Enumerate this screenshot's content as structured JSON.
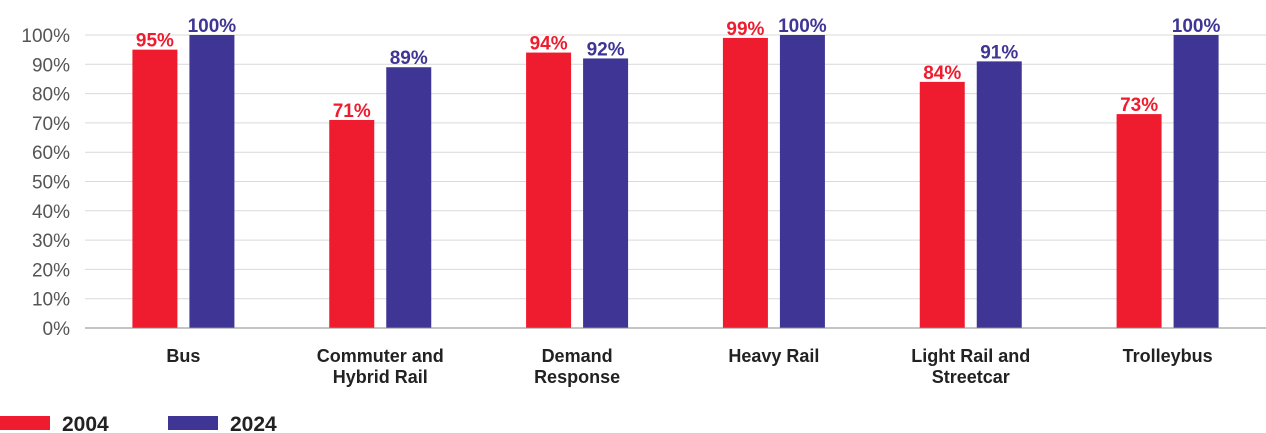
{
  "chart_data": {
    "type": "bar",
    "categories": [
      [
        "Bus"
      ],
      [
        "Commuter and",
        "Hybrid Rail"
      ],
      [
        "Demand",
        "Response"
      ],
      [
        "Heavy Rail"
      ],
      [
        "Light Rail and",
        "Streetcar"
      ],
      [
        "Trolleybus"
      ]
    ],
    "series": [
      {
        "name": "2004",
        "color": "#ee1c2e",
        "values": [
          95,
          71,
          94,
          99,
          84,
          73
        ]
      },
      {
        "name": "2024",
        "color": "#3f3594",
        "values": [
          100,
          89,
          92,
          100,
          91,
          100
        ]
      }
    ],
    "ylim": [
      0,
      100
    ],
    "yticks": [
      "0%",
      "10%",
      "20%",
      "30%",
      "40%",
      "50%",
      "60%",
      "70%",
      "80%",
      "90%",
      "100%"
    ],
    "value_suffix": "%",
    "grid": true,
    "legend_position": "bottom-left"
  }
}
